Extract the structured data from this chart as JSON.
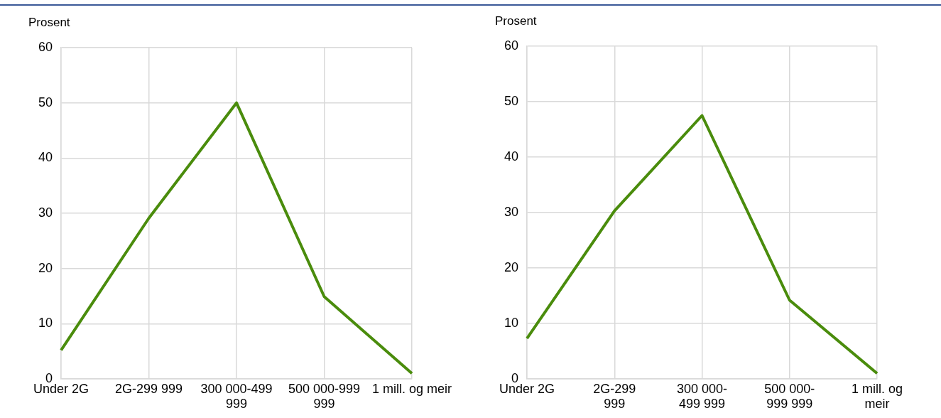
{
  "chart_data": [
    {
      "type": "line",
      "ylabel": "Prosent",
      "categories": [
        "Under 2G",
        "2G-299 999",
        "300 000-499 999",
        "500 000-999 999",
        "1 mill. og meir"
      ],
      "series": [
        {
          "color": "#4a8c0c",
          "values": [
            5.2,
            29.1,
            50,
            14.9,
            1.0
          ]
        }
      ],
      "ylim": [
        0,
        60
      ],
      "yticks": [
        0,
        10,
        20,
        30,
        40,
        50,
        60
      ],
      "grid": true,
      "marker": "none",
      "line_style": "solid"
    },
    {
      "type": "line",
      "ylabel": "Prosent",
      "categories": [
        "Under 2G",
        "2G-299 999",
        "300 000-499 999",
        "500 000-999 999",
        "1 mill. og meir"
      ],
      "series": [
        {
          "color": "#4a8c0c",
          "values": [
            7.3,
            30.3,
            47.5,
            14.2,
            1.0
          ]
        }
      ],
      "ylim": [
        0,
        60
      ],
      "yticks": [
        0,
        10,
        20,
        30,
        40,
        50,
        60
      ],
      "grid": true,
      "marker": "none",
      "line_style": "solid"
    }
  ]
}
